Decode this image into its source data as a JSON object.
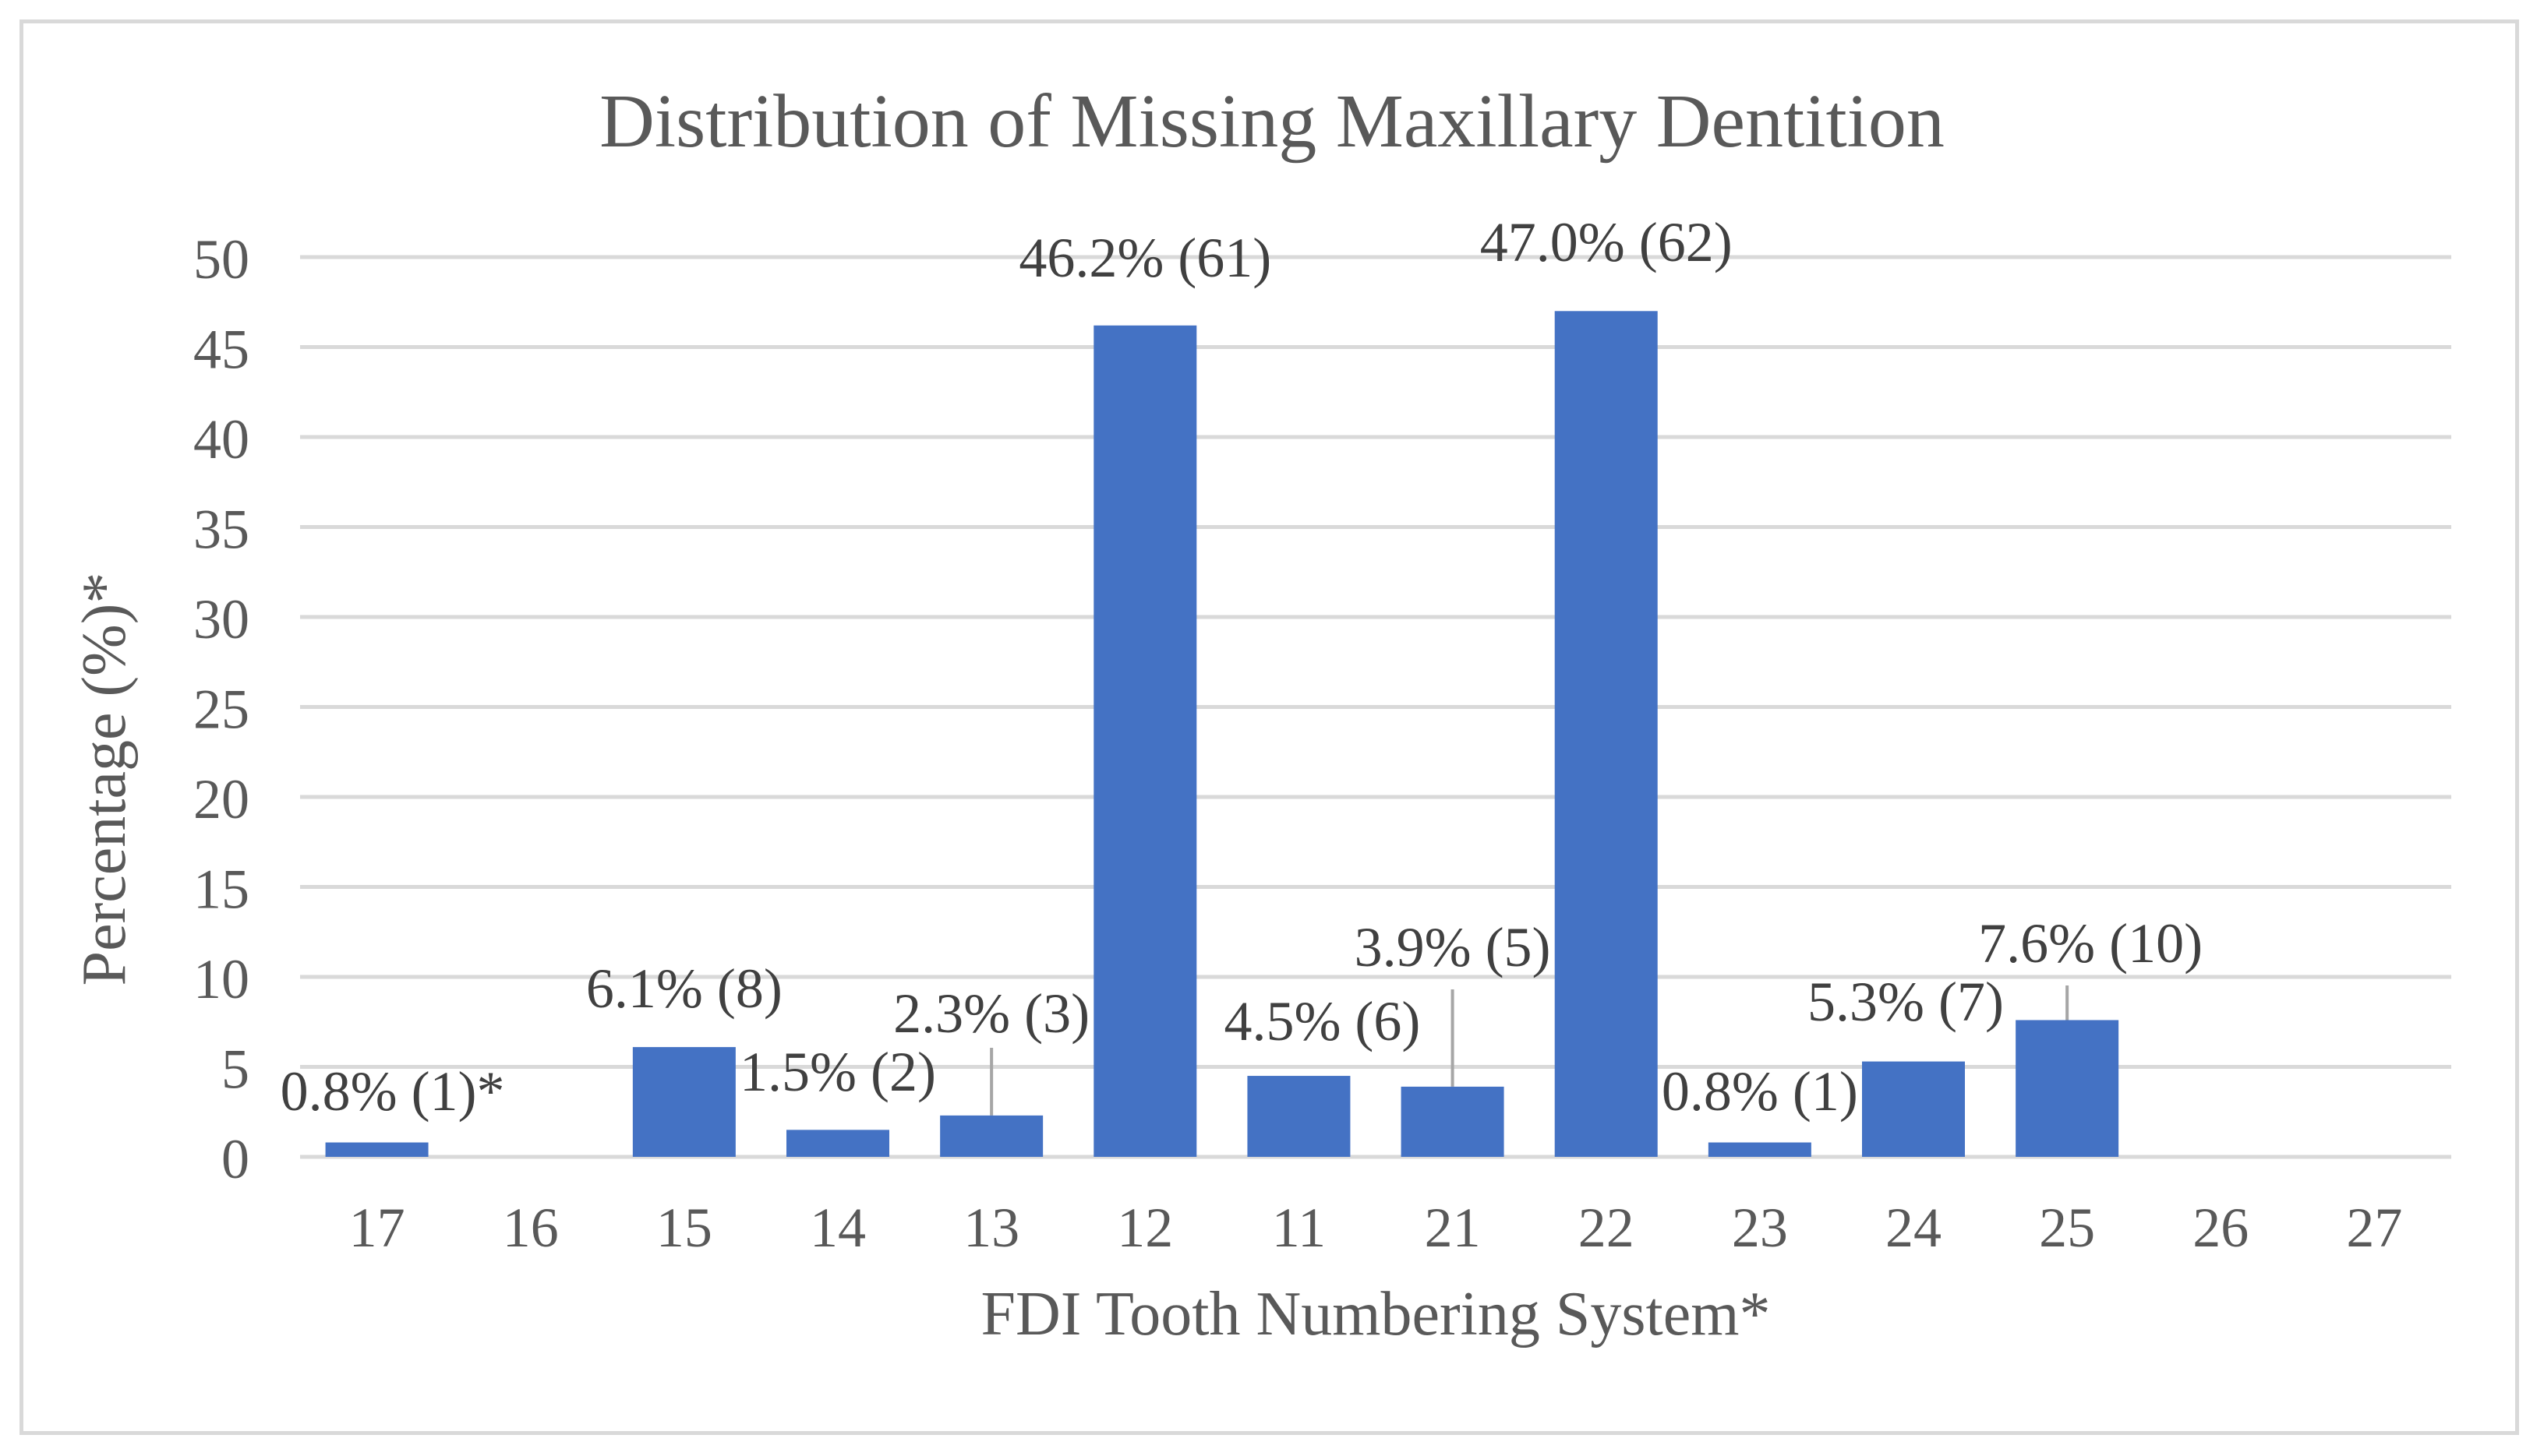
{
  "chart_data": {
    "type": "bar",
    "title": "Distribution of Missing Maxillary Dentition",
    "xlabel": "FDI Tooth Numbering System*",
    "ylabel": "Percentage (%)*",
    "ylim": [
      0,
      50
    ],
    "yticks": [
      0,
      5,
      10,
      15,
      20,
      25,
      30,
      35,
      40,
      45,
      50
    ],
    "grid": true,
    "color": "#4472c4",
    "categories": [
      "17",
      "16",
      "15",
      "14",
      "13",
      "12",
      "11",
      "21",
      "22",
      "23",
      "24",
      "25",
      "26",
      "27"
    ],
    "values": [
      0.8,
      0,
      6.1,
      1.5,
      2.3,
      46.2,
      4.5,
      3.9,
      47.0,
      0.8,
      5.3,
      7.6,
      0,
      0
    ],
    "data_labels": [
      "0.8% (1)*",
      "",
      "6.1% (8)",
      "1.5% (2)",
      "2.3% (3)",
      "46.2% (61)",
      "4.5% (6)",
      "3.9% (5)",
      "47.0% (62)",
      "0.8% (1)",
      "5.3% (7)",
      "7.6% (10)",
      "",
      ""
    ]
  }
}
